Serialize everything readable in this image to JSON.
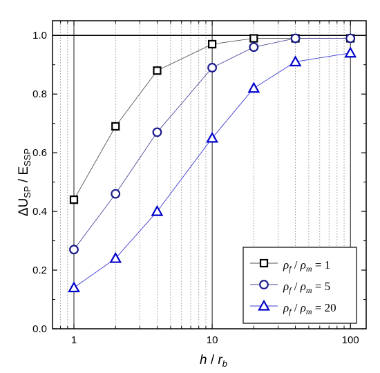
{
  "chart_data": {
    "type": "line",
    "x_scale": "log",
    "xlim": [
      0.7,
      130
    ],
    "ylim": [
      0.0,
      1.05
    ],
    "x_ticks": [
      1,
      10,
      100
    ],
    "x_tick_labels": [
      "1",
      "10",
      "100"
    ],
    "y_ticks": [
      0.0,
      0.2,
      0.4,
      0.6,
      0.8,
      1.0
    ],
    "y_tick_labels": [
      "0.0",
      "0.2",
      "0.4",
      "0.6",
      "0.8",
      "1.0"
    ],
    "reference_line_y": 1.0,
    "grid": "vertical dotted lines at log minor ticks",
    "xlabel": {
      "main": "h",
      "sep": " / ",
      "var": "r",
      "sub": "b"
    },
    "ylabel": {
      "prefix": "ΔU",
      "sub1": "SP",
      "mid": " / E",
      "sub2": "SSP"
    },
    "legend_position": "bottom-right",
    "x": [
      1,
      2,
      4,
      10,
      20,
      40,
      100
    ],
    "series": [
      {
        "name": "ρf / ρm = 1",
        "label": {
          "a": "ρ",
          "a_sub": "f",
          "sep": " / ",
          "b": "ρ",
          "b_sub": "m",
          "eq": " = 1"
        },
        "marker": "square",
        "color": "#000000",
        "line_color": "#555555",
        "values": [
          0.44,
          0.69,
          0.88,
          0.97,
          0.99,
          0.99,
          0.99
        ]
      },
      {
        "name": "ρf / ρm = 5",
        "label": {
          "a": "ρ",
          "a_sub": "f",
          "sep": " / ",
          "b": "ρ",
          "b_sub": "m",
          "eq": " = 5"
        },
        "marker": "circle",
        "color": "#1a1a8c",
        "line_color": "#4a4a9a",
        "values": [
          0.27,
          0.46,
          0.67,
          0.89,
          0.96,
          0.99,
          0.99
        ]
      },
      {
        "name": "ρf / ρm = 20",
        "label": {
          "a": "ρ",
          "a_sub": "f",
          "sep": " / ",
          "b": "ρ",
          "b_sub": "m",
          "eq": " = 20"
        },
        "marker": "triangle",
        "color": "#0000cc",
        "line_color": "#3b3bd6",
        "values": [
          0.14,
          0.24,
          0.4,
          0.65,
          0.82,
          0.91,
          0.94
        ]
      }
    ]
  }
}
